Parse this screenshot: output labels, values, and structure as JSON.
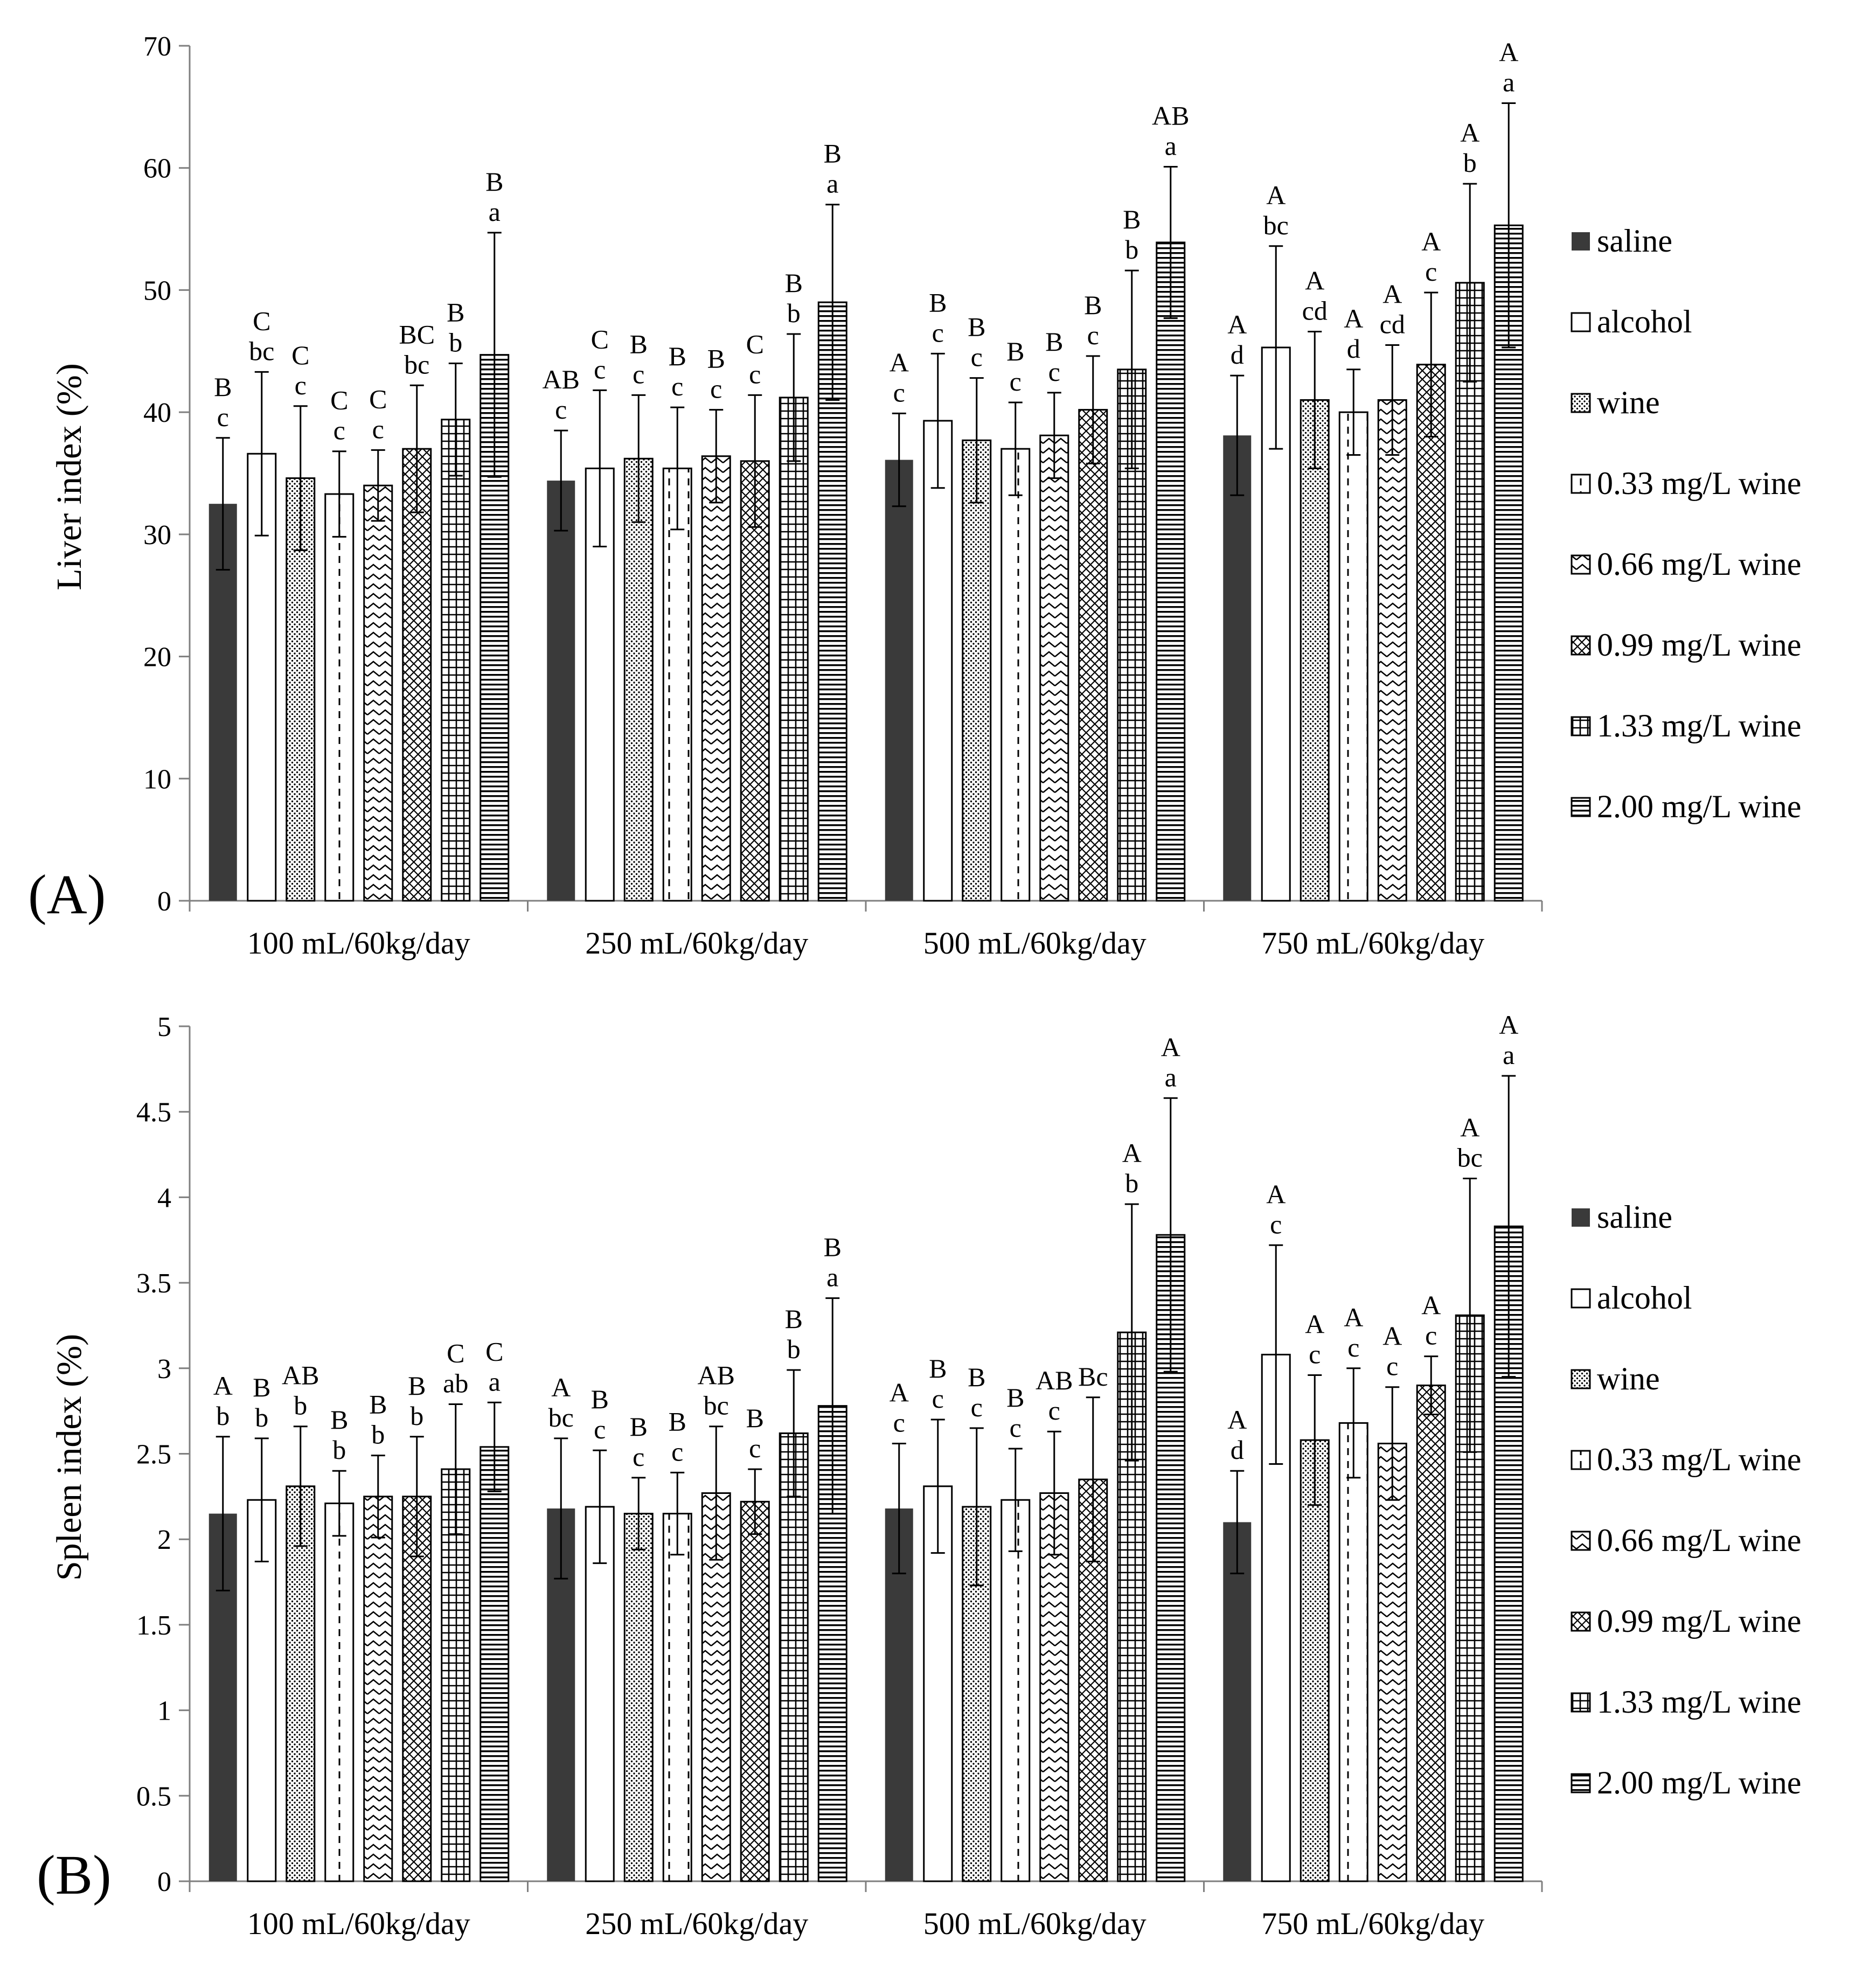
{
  "colors": {
    "saline": "#3a3a3a",
    "axis": "#7f7f7f",
    "ink": "#000000",
    "paper": "#ffffff"
  },
  "legend": {
    "items": [
      {
        "label": "saline",
        "pattern": "solid"
      },
      {
        "label": "alcohol",
        "pattern": "empty"
      },
      {
        "label": "wine",
        "pattern": "dots"
      },
      {
        "label": "0.33 mg/L wine",
        "pattern": "dashes"
      },
      {
        "label": "0.66 mg/L wine",
        "pattern": "zigzag"
      },
      {
        "label": "0.99 mg/L wine",
        "pattern": "crosshatch"
      },
      {
        "label": "1.33 mg/L wine",
        "pattern": "grid"
      },
      {
        "label": "2.00 mg/L wine",
        "pattern": "hlines"
      }
    ]
  },
  "chart_data": [
    {
      "type": "bar",
      "panel_label": "(A)",
      "ylabel": "Liver index (%)",
      "xlabel": "",
      "ylim": [
        0,
        70
      ],
      "yticks": [
        "0",
        "10",
        "20",
        "30",
        "40",
        "50",
        "60",
        "70"
      ],
      "categories": [
        "100 mL/60kg/day",
        "250 mL/60kg/day",
        "500 mL/60kg/day",
        "750 mL/60kg/day"
      ],
      "series": [
        {
          "name": "saline",
          "values": [
            32.5,
            34.4,
            36.1,
            38.1
          ],
          "errors": [
            5.4,
            4.1,
            3.8,
            4.9
          ],
          "upper": [
            "B",
            "AB",
            "A",
            "A"
          ],
          "lower": [
            "c",
            "c",
            "c",
            "d"
          ]
        },
        {
          "name": "alcohol",
          "values": [
            36.6,
            35.4,
            39.3,
            45.3
          ],
          "errors": [
            6.7,
            6.4,
            5.5,
            8.3
          ],
          "upper": [
            "C",
            "C",
            "B",
            "A"
          ],
          "lower": [
            "bc",
            "c",
            "c",
            "bc"
          ]
        },
        {
          "name": "wine",
          "values": [
            34.6,
            36.2,
            37.7,
            41.0
          ],
          "errors": [
            5.9,
            5.2,
            5.1,
            5.6
          ],
          "upper": [
            "C",
            "B",
            "B",
            "A"
          ],
          "lower": [
            "c",
            "c",
            "c",
            "cd"
          ]
        },
        {
          "name": "0.33 mg/L wine",
          "values": [
            33.3,
            35.4,
            37.0,
            40.0
          ],
          "errors": [
            3.5,
            5.0,
            3.8,
            3.5
          ],
          "upper": [
            "C",
            "B",
            "B",
            "A"
          ],
          "lower": [
            "c",
            "c",
            "c",
            "d"
          ]
        },
        {
          "name": "0.66 mg/L wine",
          "values": [
            34.0,
            36.4,
            38.1,
            41.0
          ],
          "errors": [
            2.9,
            3.8,
            3.5,
            4.5
          ],
          "upper": [
            "C",
            "B",
            "B",
            "A"
          ],
          "lower": [
            "c",
            "c",
            "c",
            "cd"
          ]
        },
        {
          "name": "0.99 mg/L wine",
          "values": [
            37.0,
            36.0,
            40.2,
            43.9
          ],
          "errors": [
            5.2,
            5.4,
            4.4,
            5.9
          ],
          "upper": [
            "BC",
            "C",
            "B",
            "A"
          ],
          "lower": [
            "bc",
            "c",
            "c",
            "c"
          ]
        },
        {
          "name": "1.33 mg/L wine",
          "values": [
            39.4,
            41.2,
            43.5,
            50.6
          ],
          "errors": [
            4.6,
            5.2,
            8.1,
            8.1
          ],
          "upper": [
            "B",
            "B",
            "B",
            "A"
          ],
          "lower": [
            "b",
            "b",
            "b",
            "b"
          ]
        },
        {
          "name": "2.00 mg/L wine",
          "values": [
            44.7,
            49.0,
            53.9,
            55.3
          ],
          "errors": [
            10.0,
            8.0,
            6.2,
            10.0
          ],
          "upper": [
            "B",
            "B",
            "AB",
            "A"
          ],
          "lower": [
            "a",
            "a",
            "a",
            "a"
          ]
        }
      ]
    },
    {
      "type": "bar",
      "panel_label": "(B)",
      "ylabel": "Spleen index (%)",
      "xlabel": "",
      "ylim": [
        0,
        5
      ],
      "yticks": [
        "0",
        "0.5",
        "1",
        "1.5",
        "2",
        "2.5",
        "3",
        "3.5",
        "4",
        "4.5",
        "5"
      ],
      "categories": [
        "100 mL/60kg/day",
        "250 mL/60kg/day",
        "500 mL/60kg/day",
        "750 mL/60kg/day"
      ],
      "series": [
        {
          "name": "saline",
          "values": [
            2.15,
            2.18,
            2.18,
            2.1
          ],
          "errors": [
            0.45,
            0.41,
            0.38,
            0.3
          ],
          "upper": [
            "A",
            "A",
            "A",
            "A"
          ],
          "lower": [
            "b",
            "bc",
            "c",
            "d"
          ]
        },
        {
          "name": "alcohol",
          "values": [
            2.23,
            2.19,
            2.31,
            3.08
          ],
          "errors": [
            0.36,
            0.33,
            0.39,
            0.64
          ],
          "upper": [
            "B",
            "B",
            "B",
            "A"
          ],
          "lower": [
            "b",
            "c",
            "c",
            "c"
          ]
        },
        {
          "name": "wine",
          "values": [
            2.31,
            2.15,
            2.19,
            2.58
          ],
          "errors": [
            0.35,
            0.21,
            0.46,
            0.38
          ],
          "upper": [
            "AB",
            "B",
            "B",
            "A"
          ],
          "lower": [
            "b",
            "c",
            "c",
            "c"
          ]
        },
        {
          "name": "0.33 mg/L wine",
          "values": [
            2.21,
            2.15,
            2.23,
            2.68
          ],
          "errors": [
            0.19,
            0.24,
            0.3,
            0.32
          ],
          "upper": [
            "B",
            "B",
            "B",
            "A"
          ],
          "lower": [
            "b",
            "c",
            "c",
            "c"
          ]
        },
        {
          "name": "0.66 mg/L wine",
          "values": [
            2.25,
            2.27,
            2.27,
            2.56
          ],
          "errors": [
            0.24,
            0.39,
            0.36,
            0.33
          ],
          "upper": [
            "B",
            "AB",
            "AB",
            "A"
          ],
          "lower": [
            "b",
            "bc",
            "c",
            "c"
          ]
        },
        {
          "name": "0.99 mg/L wine",
          "values": [
            2.25,
            2.22,
            2.35,
            2.9
          ],
          "errors": [
            0.35,
            0.19,
            0.48,
            0.17
          ],
          "upper": [
            "B",
            "B",
            "Bc",
            "A"
          ],
          "lower": [
            "b",
            "c",
            "",
            "c"
          ]
        },
        {
          "name": "1.33 mg/L wine",
          "values": [
            2.41,
            2.62,
            3.21,
            3.31
          ],
          "errors": [
            0.38,
            0.37,
            0.75,
            0.8
          ],
          "upper": [
            "C",
            "B",
            "A",
            "A"
          ],
          "lower": [
            "ab",
            "b",
            "b",
            "bc"
          ]
        },
        {
          "name": "2.00 mg/L wine",
          "values": [
            2.54,
            2.78,
            3.78,
            3.83
          ],
          "errors": [
            0.26,
            0.63,
            0.8,
            0.88
          ],
          "upper": [
            "C",
            "B",
            "A",
            "A"
          ],
          "lower": [
            "a",
            "a",
            "a",
            "a"
          ]
        }
      ]
    }
  ]
}
